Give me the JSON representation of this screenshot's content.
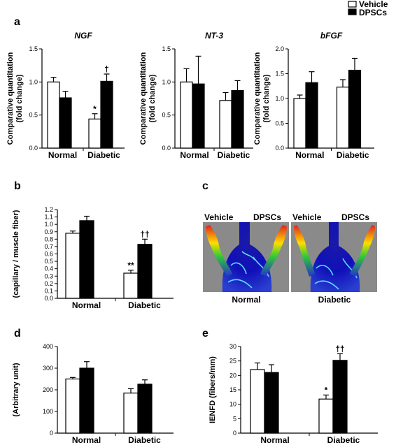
{
  "legend": {
    "vehicle": "Vehicle",
    "dpscs": "DPSCs"
  },
  "colors": {
    "vehicle_fill": "#ffffff",
    "dpscs_fill": "#000000",
    "axis": "#000000"
  },
  "panel_letters": {
    "a": "a",
    "b": "b",
    "c": "c",
    "d": "d",
    "e": "e"
  },
  "panel_c": {
    "column_labels": [
      "Vehicle",
      "DPSCs",
      "Vehicle",
      "DPSCs"
    ],
    "group_labels": [
      "Normal",
      "Diabetic"
    ]
  },
  "chart_data": [
    {
      "id": "a1",
      "type": "bar",
      "title": "NGF",
      "ylabel": "Comparative quantitation (fold change)",
      "categories": [
        "Normal",
        "Diabetic"
      ],
      "ylim": [
        0,
        1.5
      ],
      "yticks": [
        0,
        0.5,
        1.0,
        1.5
      ],
      "tick_labels": [
        "0.0",
        "0.5",
        "1.0",
        "1.5"
      ],
      "series": [
        {
          "name": "Vehicle",
          "values": [
            1.0,
            0.44
          ],
          "errors": [
            0.07,
            0.08
          ],
          "marks": [
            "",
            "*"
          ]
        },
        {
          "name": "DPSCs",
          "values": [
            0.76,
            1.01
          ],
          "errors": [
            0.1,
            0.11
          ],
          "marks": [
            "",
            "†"
          ]
        }
      ]
    },
    {
      "id": "a2",
      "type": "bar",
      "title": "NT-3",
      "ylabel": "Comparative quantitation (fold change)",
      "categories": [
        "Normal",
        "Diabetic"
      ],
      "ylim": [
        0,
        1.5
      ],
      "yticks": [
        0,
        0.5,
        1.0,
        1.5
      ],
      "tick_labels": [
        "0.0",
        "0.5",
        "1.0",
        "1.5"
      ],
      "series": [
        {
          "name": "Vehicle",
          "values": [
            1.0,
            0.72
          ],
          "errors": [
            0.2,
            0.12
          ],
          "marks": [
            "",
            ""
          ]
        },
        {
          "name": "DPSCs",
          "values": [
            0.97,
            0.87
          ],
          "errors": [
            0.42,
            0.15
          ],
          "marks": [
            "",
            ""
          ]
        }
      ]
    },
    {
      "id": "a3",
      "type": "bar",
      "title": "bFGF",
      "ylabel": "Comparative quantitation (fold change)",
      "categories": [
        "Normal",
        "Diabetic"
      ],
      "ylim": [
        0,
        2.0
      ],
      "yticks": [
        0,
        0.5,
        1.0,
        1.5,
        2.0
      ],
      "tick_labels": [
        "0.0",
        "0.5",
        "1.0",
        "1.5",
        "2.0"
      ],
      "series": [
        {
          "name": "Vehicle",
          "values": [
            1.0,
            1.23
          ],
          "errors": [
            0.07,
            0.15
          ],
          "marks": [
            "",
            ""
          ]
        },
        {
          "name": "DPSCs",
          "values": [
            1.32,
            1.57
          ],
          "errors": [
            0.22,
            0.24
          ],
          "marks": [
            "",
            ""
          ]
        }
      ]
    },
    {
      "id": "b",
      "type": "bar",
      "title": "",
      "ylabel": "(capillary / muscle fiber)",
      "categories": [
        "Normal",
        "Diabetic"
      ],
      "ylim": [
        0,
        1.2
      ],
      "yticks": [
        0,
        0.1,
        0.2,
        0.3,
        0.4,
        0.5,
        0.6,
        0.7,
        0.8,
        0.9,
        1.0,
        1.1,
        1.2
      ],
      "tick_labels": [
        "0.0",
        "0.1",
        "0.2",
        "0.3",
        "0.4",
        "0.5",
        "0.6",
        "0.7",
        "0.8",
        "0.9",
        "1.0",
        "1.1",
        "1.2"
      ],
      "series": [
        {
          "name": "Vehicle",
          "values": [
            0.88,
            0.34
          ],
          "errors": [
            0.03,
            0.04
          ],
          "marks": [
            "",
            "**"
          ]
        },
        {
          "name": "DPSCs",
          "values": [
            1.05,
            0.73
          ],
          "errors": [
            0.06,
            0.07
          ],
          "marks": [
            "",
            "††"
          ]
        }
      ]
    },
    {
      "id": "d",
      "type": "bar",
      "title": "",
      "ylabel": "(Arbitrary unit)",
      "categories": [
        "Normal",
        "Diabetic"
      ],
      "ylim": [
        0,
        400
      ],
      "yticks": [
        0,
        100,
        200,
        300,
        400
      ],
      "tick_labels": [
        "0",
        "100",
        "200",
        "300",
        "400"
      ],
      "series": [
        {
          "name": "Vehicle",
          "values": [
            250,
            185
          ],
          "errors": [
            7,
            20
          ],
          "marks": [
            "",
            ""
          ]
        },
        {
          "name": "DPSCs",
          "values": [
            300,
            226
          ],
          "errors": [
            30,
            20
          ],
          "marks": [
            "",
            ""
          ]
        }
      ]
    },
    {
      "id": "e",
      "type": "bar",
      "title": "",
      "ylabel": "IENFD (fibers/mm)",
      "categories": [
        "Normal",
        "Diabetic"
      ],
      "ylim": [
        0,
        30
      ],
      "yticks": [
        0,
        5,
        10,
        15,
        20,
        25,
        30
      ],
      "tick_labels": [
        "0",
        "5",
        "10",
        "15",
        "20",
        "25",
        "30"
      ],
      "series": [
        {
          "name": "Vehicle",
          "values": [
            22,
            11.8
          ],
          "errors": [
            2.3,
            1.4
          ],
          "marks": [
            "",
            "*"
          ]
        },
        {
          "name": "DPSCs",
          "values": [
            21,
            25.2
          ],
          "errors": [
            2.7,
            2.3
          ],
          "marks": [
            "",
            "††"
          ]
        }
      ]
    }
  ]
}
